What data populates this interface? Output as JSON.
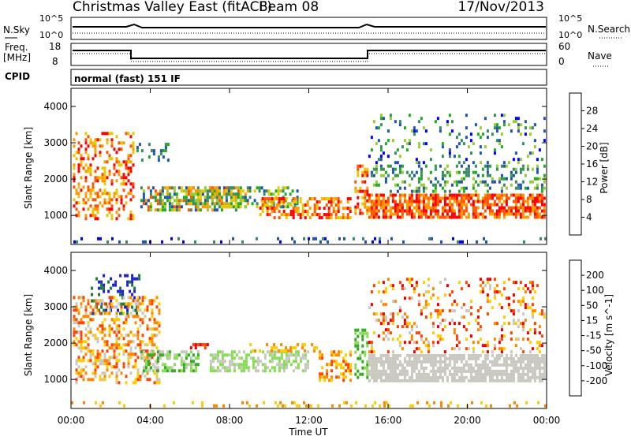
{
  "header": {
    "station": "Christmas Valley East (fitACF)",
    "beam": "Beam 08",
    "date": "17/Nov/2013"
  },
  "top_panel": {
    "left_label": "N.Sky",
    "right_label": "N.Search",
    "left_ticks": [
      "10^5",
      "10^0"
    ],
    "right_ticks": [
      "10^5",
      "10^0"
    ]
  },
  "freq_panel": {
    "left_label_1": "Freq.",
    "left_label_2": "[MHz]",
    "right_label": "Nave",
    "left_ticks": [
      "18",
      "8"
    ],
    "right_ticks": [
      "60",
      "0"
    ]
  },
  "cpid_panel": {
    "label": "CPID",
    "text": "normal (fast) 151 IF"
  },
  "x_axis": {
    "label": "Time UT",
    "ticks": [
      "00:00",
      "04:00",
      "08:00",
      "12:00",
      "16:00",
      "20:00",
      "00:00"
    ]
  },
  "chart_data": [
    {
      "type": "heatmap",
      "title": "",
      "ylabel": "Slant Range [km]",
      "ylim": [
        200,
        4500
      ],
      "yticks": [
        1000,
        2000,
        3000,
        4000
      ],
      "xlim": [
        0,
        24
      ],
      "colorbar_label": "Power [dB]",
      "colorbar_ticks": [
        "28",
        "24",
        "20",
        "16",
        "12",
        "8",
        "4"
      ],
      "colorbar_range": [
        0,
        32
      ],
      "colors": [
        "#0000ff",
        "#2255aa",
        "#3a8a66",
        "#22aa22",
        "#99cc33",
        "#e8c800",
        "#ff9900",
        "#ff5500",
        "#ff0000"
      ]
    },
    {
      "type": "heatmap",
      "title": "",
      "ylabel": "Slant Range [km]",
      "ylim": [
        200,
        4500
      ],
      "yticks": [
        1000,
        2000,
        3000,
        4000
      ],
      "xlim": [
        0,
        24
      ],
      "colorbar_label": "Velocity [m s^-1]",
      "colorbar_ticks": [
        "200",
        "100",
        "50",
        "15",
        "-15",
        "-50",
        "-100",
        "-200"
      ],
      "colorbar_range": [
        -250,
        250
      ],
      "colors": [
        "#2222cc",
        "#1a7a3a",
        "#33aa22",
        "#88dd55",
        "#c8c8c0",
        "#ffcc00",
        "#ff8800",
        "#ff4400",
        "#ee0000"
      ]
    }
  ]
}
